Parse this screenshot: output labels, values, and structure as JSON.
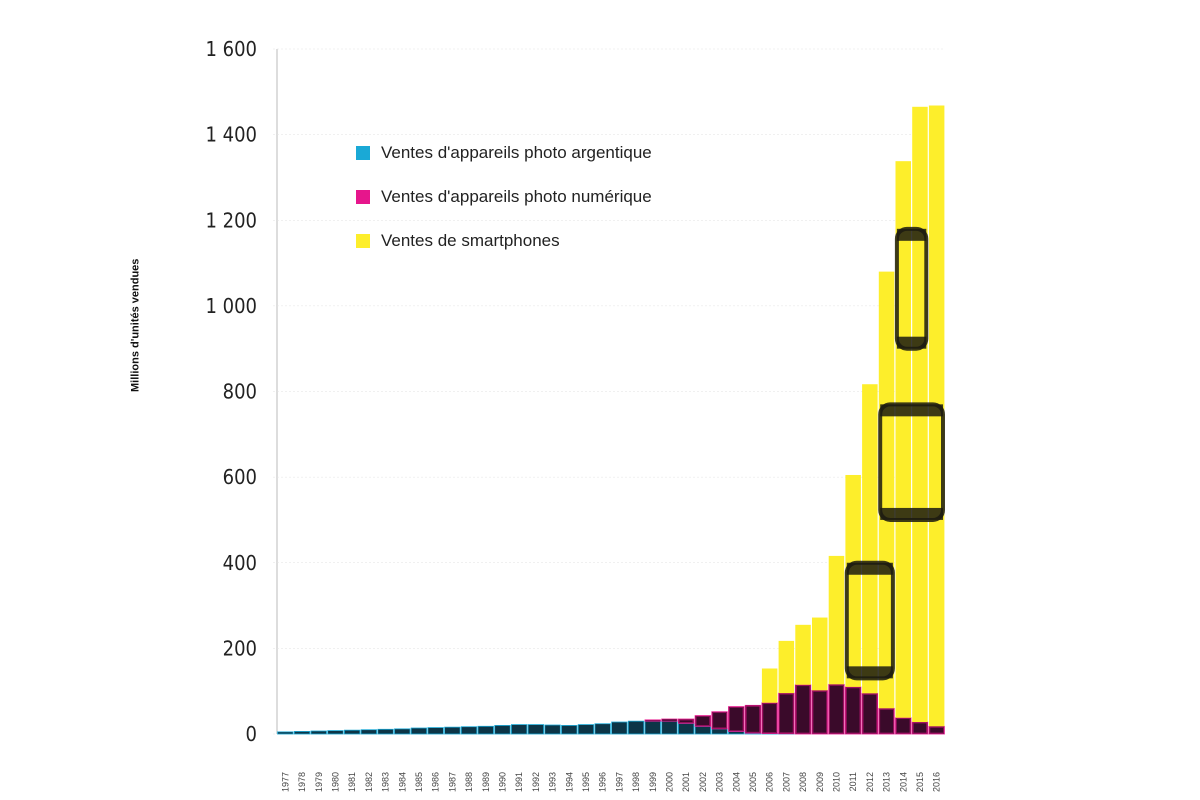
{
  "chart_data": {
    "type": "bar",
    "stacked": true,
    "ylabel": "Millions d'unités vendues",
    "xlabel": "",
    "title": "",
    "ylim": [
      0,
      1600
    ],
    "yticks": [
      0,
      200,
      400,
      600,
      800,
      1000,
      1200,
      1400,
      1600
    ],
    "ytick_labels": [
      "0",
      "200",
      "400",
      "600",
      "800",
      "1 000",
      "1 200",
      "1 400",
      "1 600"
    ],
    "categories": [
      "1977",
      "1978",
      "1979",
      "1980",
      "1981",
      "1982",
      "1983",
      "1984",
      "1985",
      "1986",
      "1987",
      "1988",
      "1989",
      "1990",
      "1991",
      "1992",
      "1993",
      "1994",
      "1995",
      "1996",
      "1997",
      "1998",
      "1999",
      "2000",
      "2001",
      "2002",
      "2003",
      "2004",
      "2005",
      "2006",
      "2007",
      "2008",
      "2009",
      "2010",
      "2011",
      "2012",
      "2013",
      "2014",
      "2015",
      "2016"
    ],
    "series": [
      {
        "name": "Ventes d'appareils photo argentique",
        "color": "#1aa9d6",
        "values": [
          5,
          6,
          7,
          8,
          9,
          10,
          11,
          12,
          14,
          15,
          16,
          17,
          18,
          20,
          22,
          22,
          21,
          20,
          22,
          24,
          28,
          30,
          30,
          30,
          25,
          18,
          12,
          6,
          2,
          1,
          0.5,
          0,
          0,
          0,
          0,
          0,
          0,
          0,
          0,
          0
        ]
      },
      {
        "name": "Ventes d'appareils photo numérique",
        "color": "#e6168c",
        "values": [
          0,
          0,
          0,
          0,
          0,
          0,
          0,
          0,
          0,
          0,
          0,
          0,
          0,
          0,
          0,
          0,
          0,
          0,
          0,
          0,
          0,
          0,
          3,
          5,
          10,
          25,
          40,
          58,
          65,
          72,
          95,
          115,
          102,
          116,
          110,
          95,
          60,
          38,
          28,
          18
        ]
      },
      {
        "name": "Ventes de smartphones",
        "color": "#fdee2b",
        "values": [
          0,
          0,
          0,
          0,
          0,
          0,
          0,
          0,
          0,
          0,
          0,
          0,
          0,
          0,
          0,
          0,
          0,
          0,
          0,
          0,
          0,
          0,
          0,
          0,
          0,
          0,
          0,
          0,
          0,
          80,
          122,
          140,
          170,
          300,
          495,
          722,
          1020,
          1300,
          1437,
          1450
        ]
      }
    ],
    "legend_position": "top-left",
    "grid": false
  }
}
